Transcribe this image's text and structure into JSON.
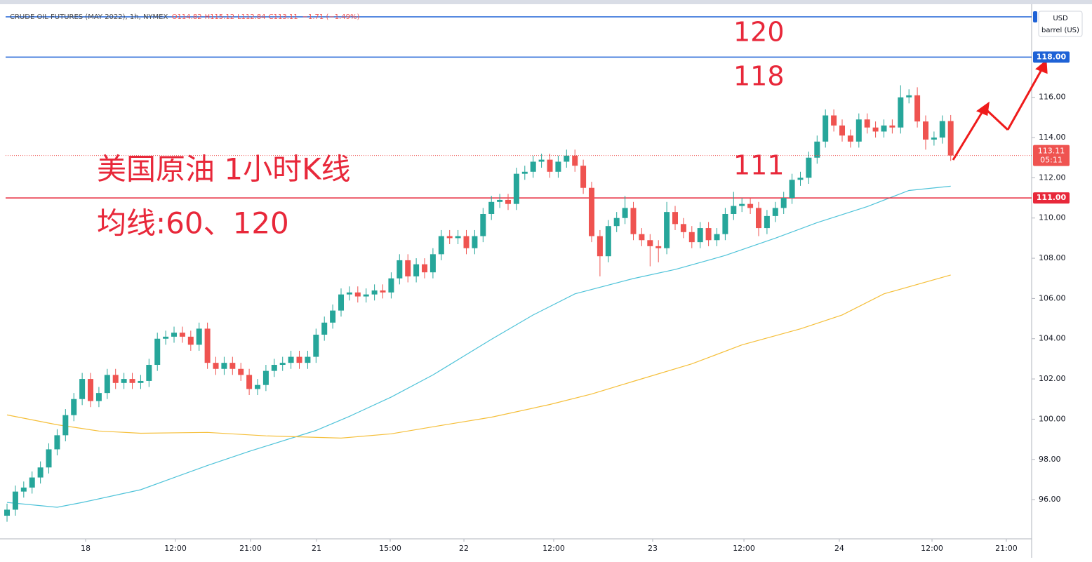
{
  "chart_data": {
    "type": "candlestick",
    "title": "CRUDE OIL FUTURES (MAY 2022), 1h, NYMEX",
    "legend_values": [
      "O114.82",
      "H115.12",
      "L112.84",
      "C113.11",
      "−1.71 (−1.49%)"
    ],
    "currency": "USD",
    "unit": "barrel (US)",
    "countdown": "05:11",
    "up_color": "#26a69a",
    "down_color": "#ef5350",
    "open": [
      95.2,
      95.5,
      96.4,
      96.6,
      97.1,
      97.6,
      98.5,
      99.2,
      100.2,
      101.0,
      102.0,
      100.9,
      101.3,
      102.2,
      101.8,
      102.0,
      101.8,
      101.9,
      102.7,
      104.0,
      104.1,
      104.3,
      104.1,
      103.7,
      104.5,
      102.8,
      102.5,
      102.8,
      102.5,
      102.2,
      101.5,
      101.7,
      102.4,
      102.7,
      102.8,
      103.1,
      102.8,
      103.1,
      104.2,
      104.8,
      105.4,
      106.2,
      106.3,
      106.1,
      106.2,
      106.4,
      106.3,
      107.0,
      107.9,
      107.1,
      107.7,
      107.3,
      108.2,
      109.1,
      109.0,
      109.1,
      108.5,
      109.1,
      110.2,
      110.8,
      110.9,
      110.7,
      112.2,
      112.3,
      112.8,
      112.9,
      112.3,
      112.8,
      113.1,
      112.6,
      111.5,
      109.1,
      108.1,
      109.6,
      110.0,
      110.5,
      109.2,
      108.9,
      108.6,
      108.5,
      110.3,
      109.7,
      109.3,
      108.8,
      109.5,
      108.9,
      109.2,
      110.2,
      110.6,
      110.7,
      110.5,
      109.5,
      110.1,
      110.5,
      111.0,
      111.9,
      112.0,
      113.0,
      113.8,
      115.1,
      114.6,
      114.1,
      113.8,
      114.9,
      114.5,
      114.3,
      114.6,
      114.5,
      116.0,
      116.1,
      114.8,
      113.9,
      114.0,
      114.82
    ],
    "high": [
      95.8,
      96.7,
      96.9,
      97.4,
      97.9,
      98.8,
      99.5,
      100.5,
      101.3,
      102.3,
      102.3,
      101.6,
      102.5,
      102.5,
      102.3,
      102.3,
      102.2,
      103.0,
      104.3,
      104.4,
      104.6,
      104.6,
      104.4,
      104.8,
      104.8,
      103.1,
      103.1,
      103.1,
      102.8,
      102.5,
      102.0,
      102.7,
      103.0,
      103.1,
      103.4,
      103.4,
      103.4,
      104.5,
      105.1,
      105.7,
      106.5,
      106.6,
      106.6,
      106.5,
      106.7,
      106.7,
      107.3,
      108.2,
      108.2,
      108.0,
      108.0,
      108.5,
      109.4,
      109.4,
      109.4,
      109.4,
      109.4,
      110.5,
      111.1,
      111.2,
      111.2,
      112.5,
      112.6,
      113.1,
      113.2,
      113.2,
      113.1,
      113.4,
      113.4,
      112.9,
      111.8,
      109.4,
      109.9,
      110.3,
      111.1,
      110.8,
      109.5,
      109.2,
      108.9,
      110.8,
      110.6,
      110.0,
      109.6,
      109.8,
      109.8,
      109.5,
      110.5,
      111.3,
      111.0,
      111.0,
      110.8,
      110.4,
      110.8,
      111.3,
      112.2,
      112.3,
      113.3,
      114.1,
      115.4,
      115.4,
      114.9,
      114.4,
      115.2,
      115.2,
      114.8,
      114.9,
      114.9,
      116.6,
      116.4,
      116.5,
      115.1,
      114.3,
      115.1,
      115.12
    ],
    "low": [
      94.9,
      95.2,
      96.1,
      96.3,
      96.8,
      97.3,
      98.2,
      98.9,
      99.9,
      100.7,
      100.6,
      100.6,
      101.0,
      101.5,
      101.5,
      101.5,
      101.5,
      101.6,
      102.4,
      103.7,
      103.8,
      103.8,
      103.4,
      103.4,
      102.5,
      102.2,
      102.2,
      102.2,
      101.9,
      101.2,
      101.2,
      101.4,
      102.1,
      102.4,
      102.5,
      102.5,
      102.5,
      102.8,
      103.9,
      104.5,
      105.1,
      105.9,
      105.8,
      105.8,
      105.9,
      106.0,
      106.0,
      106.7,
      106.8,
      106.8,
      107.0,
      107.0,
      107.9,
      108.7,
      108.7,
      108.2,
      108.2,
      108.8,
      109.9,
      110.5,
      110.4,
      110.4,
      111.9,
      112.0,
      112.5,
      112.0,
      112.0,
      112.5,
      112.3,
      111.2,
      108.8,
      107.1,
      107.8,
      109.3,
      109.7,
      108.9,
      108.6,
      107.6,
      107.8,
      108.2,
      109.4,
      109.0,
      108.5,
      108.5,
      108.6,
      108.6,
      108.9,
      109.9,
      110.3,
      110.2,
      109.1,
      109.2,
      109.8,
      110.2,
      110.7,
      111.6,
      111.7,
      112.7,
      113.5,
      114.3,
      113.8,
      113.5,
      113.5,
      114.2,
      114.0,
      114.0,
      114.2,
      114.2,
      115.7,
      114.5,
      113.4,
      113.6,
      113.7,
      112.84
    ],
    "close": [
      95.5,
      96.4,
      96.6,
      97.1,
      97.6,
      98.5,
      99.2,
      100.2,
      101.0,
      102.0,
      100.9,
      101.3,
      102.2,
      101.8,
      102.0,
      101.8,
      101.9,
      102.7,
      104.0,
      104.1,
      104.3,
      104.1,
      103.7,
      104.5,
      102.8,
      102.5,
      102.8,
      102.5,
      102.2,
      101.5,
      101.7,
      102.4,
      102.7,
      102.8,
      103.1,
      102.8,
      103.1,
      104.2,
      104.8,
      105.4,
      106.2,
      106.3,
      106.1,
      106.2,
      106.4,
      106.3,
      107.0,
      107.9,
      107.1,
      107.7,
      107.3,
      108.2,
      109.1,
      109.0,
      109.1,
      108.5,
      109.1,
      110.2,
      110.8,
      110.9,
      110.7,
      112.2,
      112.3,
      112.8,
      112.9,
      112.3,
      112.8,
      113.1,
      112.6,
      111.5,
      109.1,
      108.1,
      109.6,
      110.0,
      110.5,
      109.2,
      108.9,
      108.6,
      108.5,
      110.3,
      109.7,
      109.3,
      108.8,
      109.5,
      108.9,
      109.2,
      110.2,
      110.6,
      110.7,
      110.5,
      109.5,
      110.1,
      110.5,
      111.0,
      111.9,
      112.0,
      113.0,
      113.8,
      115.1,
      114.6,
      114.1,
      113.8,
      114.9,
      114.5,
      114.3,
      114.6,
      114.5,
      116.0,
      116.1,
      114.8,
      113.9,
      114.0,
      114.82,
      113.11
    ],
    "series": [
      {
        "color": "#4fc3d9",
        "x": [
          0,
          6,
          9,
          16,
          24,
          29,
          37,
          41,
          46,
          51,
          58,
          63,
          68,
          75,
          80,
          86,
          92,
          97,
          103,
          108,
          113
        ],
        "values": [
          95.86,
          95.62,
          95.86,
          96.49,
          97.7,
          98.4,
          99.44,
          100.14,
          101.1,
          102.2,
          103.97,
          105.18,
          106.23,
          106.99,
          107.44,
          108.14,
          109.0,
          109.77,
          110.57,
          111.37,
          111.58
        ]
      },
      {
        "color": "#f5bf3a",
        "x": [
          0,
          6,
          11,
          16,
          24,
          31,
          40,
          46,
          51,
          58,
          65,
          70,
          75,
          82,
          88,
          95,
          100,
          105,
          113
        ],
        "values": [
          100.21,
          99.72,
          99.41,
          99.3,
          99.34,
          99.17,
          99.06,
          99.27,
          99.62,
          100.1,
          100.73,
          101.25,
          101.88,
          102.75,
          103.69,
          104.49,
          105.18,
          106.23,
          107.17
        ]
      }
    ],
    "xlim": [
      -0.17,
      122.69
    ],
    "xticks": [
      {
        "value": 9.41,
        "label": "18"
      },
      {
        "value": 20.17,
        "label": "12:00"
      },
      {
        "value": 29.16,
        "label": "21:00"
      },
      {
        "value": 37.06,
        "label": "21"
      },
      {
        "value": 45.88,
        "label": "15:00"
      },
      {
        "value": 54.71,
        "label": "22"
      },
      {
        "value": 65.46,
        "label": "12:00"
      },
      {
        "value": 77.31,
        "label": "23"
      },
      {
        "value": 88.24,
        "label": "12:00"
      },
      {
        "value": 99.66,
        "label": "24"
      },
      {
        "value": 110.76,
        "label": "12:00"
      },
      {
        "value": 119.66,
        "label": "21:00"
      }
    ],
    "ylim": [
      94.05,
      120.49
    ],
    "yticks": [
      {
        "value": 96,
        "label": "96.00"
      },
      {
        "value": 98,
        "label": "98.00"
      },
      {
        "value": 100,
        "label": "100.00"
      },
      {
        "value": 102,
        "label": "102.00"
      },
      {
        "value": 104,
        "label": "104.00"
      },
      {
        "value": 106,
        "label": "106.00"
      },
      {
        "value": 108,
        "label": "108.00"
      },
      {
        "value": 110,
        "label": "110.00"
      },
      {
        "value": 112,
        "label": "112.00"
      },
      {
        "value": 114,
        "label": "114.00"
      },
      {
        "value": 116,
        "label": "116.00"
      }
    ],
    "hlines": [
      {
        "value": 120,
        "color": "#1e62d6"
      },
      {
        "value": 118,
        "color": "#1e62d6",
        "label": "118.00"
      },
      {
        "value": 111,
        "color": "#e8283a",
        "label": "111.00"
      }
    ],
    "annotations": [
      "120",
      "118",
      "111",
      "美国原油 1小时K线",
      "均线:60、120"
    ]
  }
}
